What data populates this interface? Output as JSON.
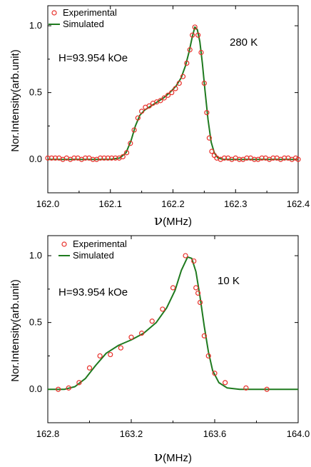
{
  "chart_data": [
    {
      "type": "scatter",
      "annotation_temp": "280 K",
      "annotation_field": "H=93.954 kOe",
      "xlabel_symbol": "ν",
      "xlabel_unit": "(MHz)",
      "ylabel": "Nor.Intensity(arb.unit)",
      "xlim": [
        162.0,
        162.4
      ],
      "ylim": [
        -0.25,
        1.15
      ],
      "xticks": [
        "162.0",
        "162.1",
        "162.2",
        "162.3",
        "162.4"
      ],
      "xtick_values": [
        162.0,
        162.1,
        162.2,
        162.3,
        162.4
      ],
      "yticks": [
        "0.0",
        "0.5",
        "1.0"
      ],
      "ytick_values": [
        0.0,
        0.5,
        1.0
      ],
      "legend": {
        "placement": "top-left",
        "experimental": "Experimental",
        "simulated": "Simulated"
      },
      "colors": {
        "experimental": "#e8302a",
        "simulated": "#1f7a1f"
      },
      "series": [
        {
          "name": "Experimental",
          "points": [
            [
              162.0,
              0.01
            ],
            [
              162.006,
              0.01
            ],
            [
              162.012,
              0.01
            ],
            [
              162.018,
              0.01
            ],
            [
              162.024,
              0.0
            ],
            [
              162.03,
              0.01
            ],
            [
              162.036,
              0.0
            ],
            [
              162.042,
              0.01
            ],
            [
              162.048,
              0.01
            ],
            [
              162.054,
              0.0
            ],
            [
              162.06,
              0.01
            ],
            [
              162.066,
              0.01
            ],
            [
              162.072,
              0.0
            ],
            [
              162.078,
              0.0
            ],
            [
              162.084,
              0.01
            ],
            [
              162.09,
              0.01
            ],
            [
              162.096,
              0.01
            ],
            [
              162.102,
              0.01
            ],
            [
              162.108,
              0.01
            ],
            [
              162.114,
              0.01
            ],
            [
              162.12,
              0.02
            ],
            [
              162.126,
              0.05
            ],
            [
              162.132,
              0.12
            ],
            [
              162.138,
              0.22
            ],
            [
              162.144,
              0.31
            ],
            [
              162.15,
              0.36
            ],
            [
              162.156,
              0.39
            ],
            [
              162.162,
              0.4
            ],
            [
              162.168,
              0.42
            ],
            [
              162.174,
              0.43
            ],
            [
              162.18,
              0.44
            ],
            [
              162.186,
              0.46
            ],
            [
              162.192,
              0.48
            ],
            [
              162.198,
              0.5
            ],
            [
              162.204,
              0.53
            ],
            [
              162.21,
              0.57
            ],
            [
              162.216,
              0.62
            ],
            [
              162.222,
              0.72
            ],
            [
              162.227,
              0.82
            ],
            [
              162.231,
              0.93
            ],
            [
              162.235,
              0.99
            ],
            [
              162.24,
              0.93
            ],
            [
              162.245,
              0.8
            ],
            [
              162.25,
              0.57
            ],
            [
              162.254,
              0.35
            ],
            [
              162.258,
              0.16
            ],
            [
              162.262,
              0.06
            ],
            [
              162.266,
              0.03
            ],
            [
              162.27,
              0.01
            ],
            [
              162.276,
              0.0
            ],
            [
              162.282,
              0.01
            ],
            [
              162.288,
              0.01
            ],
            [
              162.294,
              0.0
            ],
            [
              162.3,
              0.01
            ],
            [
              162.306,
              0.0
            ],
            [
              162.312,
              0.0
            ],
            [
              162.318,
              0.01
            ],
            [
              162.324,
              0.01
            ],
            [
              162.33,
              0.0
            ],
            [
              162.336,
              0.0
            ],
            [
              162.342,
              0.01
            ],
            [
              162.348,
              0.01
            ],
            [
              162.354,
              0.0
            ],
            [
              162.36,
              0.01
            ],
            [
              162.366,
              0.01
            ],
            [
              162.372,
              0.0
            ],
            [
              162.378,
              0.01
            ],
            [
              162.384,
              0.01
            ],
            [
              162.39,
              0.0
            ],
            [
              162.396,
              0.01
            ],
            [
              162.4,
              0.0
            ]
          ]
        },
        {
          "name": "Simulated",
          "points": [
            [
              162.0,
              0.0
            ],
            [
              162.1,
              0.0
            ],
            [
              162.115,
              0.01
            ],
            [
              162.125,
              0.05
            ],
            [
              162.133,
              0.14
            ],
            [
              162.14,
              0.25
            ],
            [
              162.147,
              0.33
            ],
            [
              162.155,
              0.37
            ],
            [
              162.165,
              0.4
            ],
            [
              162.175,
              0.43
            ],
            [
              162.185,
              0.46
            ],
            [
              162.195,
              0.5
            ],
            [
              162.205,
              0.55
            ],
            [
              162.213,
              0.61
            ],
            [
              162.22,
              0.7
            ],
            [
              162.226,
              0.81
            ],
            [
              162.231,
              0.92
            ],
            [
              162.235,
              0.99
            ],
            [
              162.239,
              0.97
            ],
            [
              162.243,
              0.88
            ],
            [
              162.247,
              0.72
            ],
            [
              162.251,
              0.52
            ],
            [
              162.256,
              0.3
            ],
            [
              162.261,
              0.13
            ],
            [
              162.266,
              0.05
            ],
            [
              162.272,
              0.01
            ],
            [
              162.28,
              0.0
            ],
            [
              162.4,
              0.0
            ]
          ]
        }
      ]
    },
    {
      "type": "scatter",
      "annotation_temp": "10 K",
      "annotation_field": "H=93.954 kOe",
      "xlabel_symbol": "ν",
      "xlabel_unit": "(MHz)",
      "ylabel": "Nor.Intensity(arb.unit)",
      "xlim": [
        162.8,
        164.0
      ],
      "ylim": [
        -0.25,
        1.15
      ],
      "xticks": [
        "162.8",
        "163.2",
        "163.6",
        "164.0"
      ],
      "xtick_values": [
        162.8,
        163.2,
        163.6,
        164.0
      ],
      "yticks": [
        "0.0",
        "0.5",
        "1.0"
      ],
      "ytick_values": [
        0.0,
        0.5,
        1.0
      ],
      "legend": {
        "placement": "top-left",
        "experimental": "Experimental",
        "simulated": "Simulated"
      },
      "colors": {
        "experimental": "#e8302a",
        "simulated": "#1f7a1f"
      },
      "series": [
        {
          "name": "Experimental",
          "points": [
            [
              162.85,
              0.0
            ],
            [
              162.9,
              0.01
            ],
            [
              162.95,
              0.05
            ],
            [
              163.0,
              0.16
            ],
            [
              163.05,
              0.25
            ],
            [
              163.1,
              0.26
            ],
            [
              163.15,
              0.31
            ],
            [
              163.2,
              0.39
            ],
            [
              163.25,
              0.42
            ],
            [
              163.3,
              0.51
            ],
            [
              163.35,
              0.6
            ],
            [
              163.4,
              0.76
            ],
            [
              163.46,
              1.0
            ],
            [
              163.5,
              0.96
            ],
            [
              163.51,
              0.76
            ],
            [
              163.52,
              0.72
            ],
            [
              163.53,
              0.65
            ],
            [
              163.55,
              0.4
            ],
            [
              163.57,
              0.25
            ],
            [
              163.6,
              0.12
            ],
            [
              163.65,
              0.05
            ],
            [
              163.75,
              0.01
            ],
            [
              163.85,
              0.0
            ]
          ]
        },
        {
          "name": "Simulated",
          "points": [
            [
              162.8,
              0.0
            ],
            [
              162.88,
              0.0
            ],
            [
              162.93,
              0.02
            ],
            [
              162.98,
              0.08
            ],
            [
              163.03,
              0.18
            ],
            [
              163.08,
              0.27
            ],
            [
              163.14,
              0.33
            ],
            [
              163.2,
              0.37
            ],
            [
              163.26,
              0.42
            ],
            [
              163.32,
              0.5
            ],
            [
              163.37,
              0.61
            ],
            [
              163.41,
              0.74
            ],
            [
              163.44,
              0.89
            ],
            [
              163.47,
              0.99
            ],
            [
              163.49,
              0.98
            ],
            [
              163.51,
              0.88
            ],
            [
              163.53,
              0.69
            ],
            [
              163.55,
              0.47
            ],
            [
              163.57,
              0.28
            ],
            [
              163.59,
              0.14
            ],
            [
              163.62,
              0.05
            ],
            [
              163.66,
              0.01
            ],
            [
              163.72,
              0.0
            ],
            [
              164.0,
              0.0
            ]
          ]
        }
      ]
    }
  ]
}
